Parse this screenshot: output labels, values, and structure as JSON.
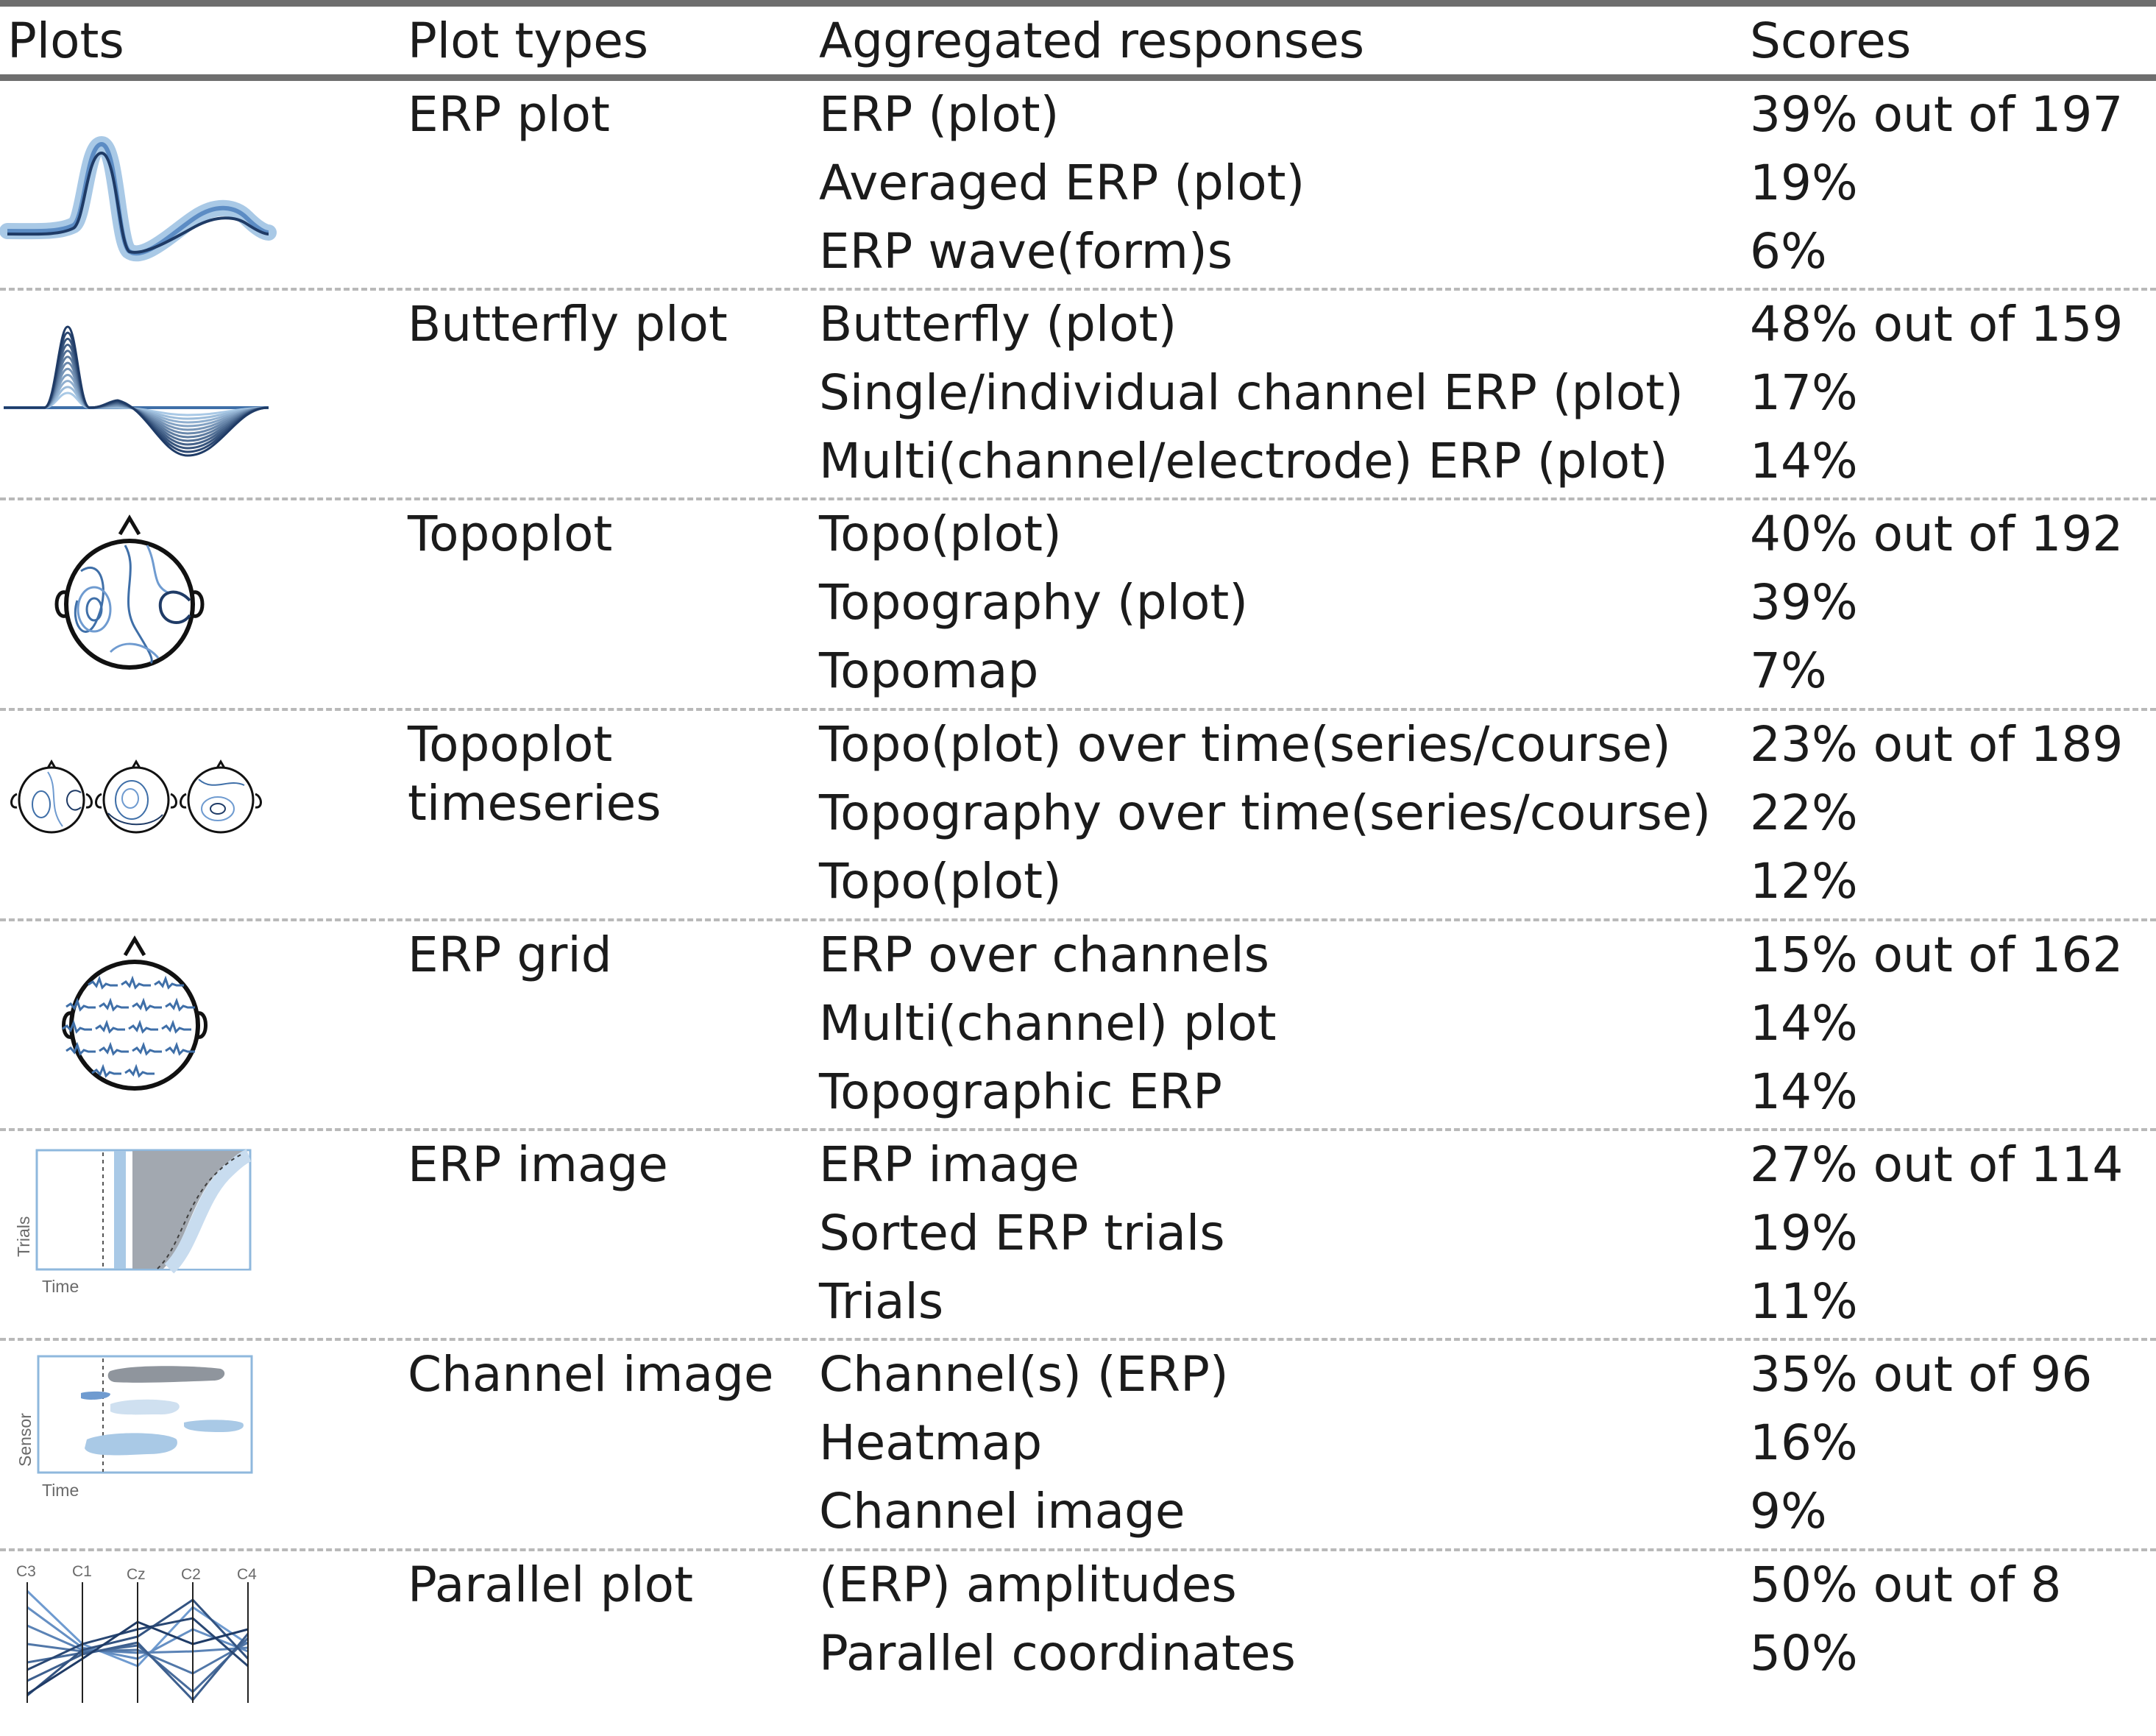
{
  "headers": {
    "plots": "Plots",
    "plot_types": "Plot types",
    "responses": "Aggregated responses",
    "scores": "Scores"
  },
  "rows": [
    {
      "plot_type": [
        "ERP plot"
      ],
      "icon": "erp-plot-icon",
      "responses": [
        "ERP (plot)",
        "Averaged ERP (plot)",
        "ERP wave(form)s"
      ],
      "scores": [
        "39% out of 197",
        "19%",
        "6%"
      ]
    },
    {
      "plot_type": [
        "Butterfly plot"
      ],
      "icon": "butterfly-plot-icon",
      "responses": [
        "Butterfly (plot)",
        "Single/individual channel ERP (plot)",
        "Multi(channel/electrode) ERP (plot)"
      ],
      "scores": [
        "48% out of 159",
        "17%",
        "14%"
      ]
    },
    {
      "plot_type": [
        "Topoplot"
      ],
      "icon": "topoplot-icon",
      "responses": [
        "Topo(plot)",
        "Topography (plot)",
        "Topomap"
      ],
      "scores": [
        "40% out of 192",
        "39%",
        "7%"
      ]
    },
    {
      "plot_type": [
        "Topoplot",
        "timeseries"
      ],
      "icon": "topoplot-timeseries-icon",
      "responses": [
        "Topo(plot) over time(series/course)",
        "Topography over time(series/course)",
        "Topo(plot)"
      ],
      "scores": [
        "23% out of 189",
        "22%",
        "12%"
      ]
    },
    {
      "plot_type": [
        "ERP grid"
      ],
      "icon": "erp-grid-icon",
      "responses": [
        "ERP over channels",
        "Multi(channel) plot",
        "Topographic ERP"
      ],
      "scores": [
        "15% out of 162",
        "14%",
        "14%"
      ]
    },
    {
      "plot_type": [
        "ERP image"
      ],
      "icon": "erp-image-icon",
      "icon_labels": {
        "y": "Trials",
        "x": "Time"
      },
      "responses": [
        "ERP image",
        "Sorted ERP trials",
        "Trials"
      ],
      "scores": [
        "27% out of 114",
        "19%",
        "11%"
      ]
    },
    {
      "plot_type": [
        "Channel image"
      ],
      "icon": "channel-image-icon",
      "icon_labels": {
        "y": "Sensor",
        "x": "Time"
      },
      "responses": [
        "Channel(s) (ERP)",
        "Heatmap",
        "Channel image"
      ],
      "scores": [
        "35% out of 96",
        "16%",
        "9%"
      ]
    },
    {
      "plot_type": [
        "Parallel plot"
      ],
      "icon": "parallel-plot-icon",
      "icon_labels": {
        "axes": [
          "C3",
          "C1",
          "Cz",
          "C2",
          "C4"
        ]
      },
      "responses": [
        "(ERP) amplitudes",
        "Parallel coordinates"
      ],
      "scores": [
        "50% out of 8",
        "50%"
      ]
    }
  ],
  "colors": {
    "text": "#1b1b1b",
    "rule": "#6e6e6e",
    "separator": "#b9b9b9",
    "dark_blue": "#1f3b66",
    "mid_blue": "#3f6fa8",
    "light_blue": "#a9c9e6",
    "pale_blue": "#cfe0f0",
    "grey": "#8f959d"
  }
}
